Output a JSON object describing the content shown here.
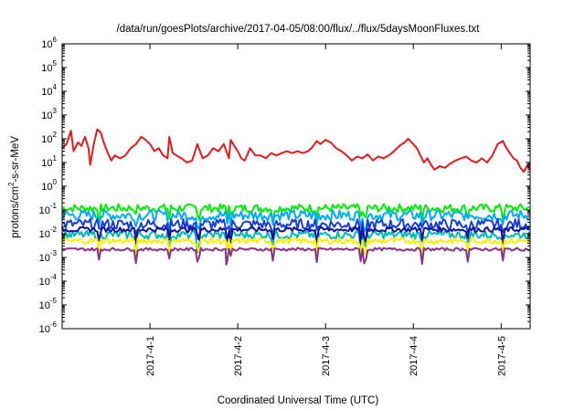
{
  "chart_data": {
    "type": "line",
    "title": "/data/run/goesPlots/archive/2017-04-05/08:00/flux/../flux/5daysMoonFluxes.txt",
    "xlabel": "Coordinated Universal Time (UTC)",
    "ylabel_parts": {
      "prefix": "protons/cm",
      "sup": "2",
      "suffix": "-s-sr-MeV"
    },
    "y_scale": "log",
    "ylim": [
      1e-06,
      1000000.0
    ],
    "y_ticks": [
      {
        "base": "10",
        "exp": "-6",
        "value": 1e-06
      },
      {
        "base": "10",
        "exp": "-5",
        "value": 1e-05
      },
      {
        "base": "10",
        "exp": "-4",
        "value": 0.0001
      },
      {
        "base": "10",
        "exp": "-3",
        "value": 0.001
      },
      {
        "base": "10",
        "exp": "-2",
        "value": 0.01
      },
      {
        "base": "10",
        "exp": "-1",
        "value": 0.1
      },
      {
        "base": "10",
        "exp": "0",
        "value": 1
      },
      {
        "base": "10",
        "exp": "1",
        "value": 10
      },
      {
        "base": "10",
        "exp": "2",
        "value": 100
      },
      {
        "base": "10",
        "exp": "3",
        "value": 1000
      },
      {
        "base": "10",
        "exp": "4",
        "value": 10000
      },
      {
        "base": "10",
        "exp": "5",
        "value": 100000
      },
      {
        "base": "10",
        "exp": "6",
        "value": 1000000
      }
    ],
    "xlim_days": [
      0,
      5.33
    ],
    "x_ticks": [
      {
        "label": "2017-4-1",
        "day": 1
      },
      {
        "label": "2017-4-2",
        "day": 2
      },
      {
        "label": "2017-4-3",
        "day": 3
      },
      {
        "label": "2017-4-4",
        "day": 4
      },
      {
        "label": "2017-4-5",
        "day": 5
      }
    ],
    "grid": false,
    "legend": "none",
    "series": [
      {
        "color": "#e41a1c",
        "points": [
          [
            0.0,
            40
          ],
          [
            0.05,
            60
          ],
          [
            0.1,
            220
          ],
          [
            0.13,
            30
          ],
          [
            0.18,
            70
          ],
          [
            0.22,
            50
          ],
          [
            0.26,
            120
          ],
          [
            0.3,
            40
          ],
          [
            0.32,
            8
          ],
          [
            0.36,
            60
          ],
          [
            0.4,
            250
          ],
          [
            0.44,
            180
          ],
          [
            0.48,
            60
          ],
          [
            0.52,
            25
          ],
          [
            0.56,
            12
          ],
          [
            0.6,
            20
          ],
          [
            0.66,
            15
          ],
          [
            0.72,
            20
          ],
          [
            0.78,
            40
          ],
          [
            0.84,
            60
          ],
          [
            0.9,
            120
          ],
          [
            0.95,
            90
          ],
          [
            1.0,
            60
          ],
          [
            1.05,
            30
          ],
          [
            1.1,
            40
          ],
          [
            1.15,
            20
          ],
          [
            1.2,
            15
          ],
          [
            1.22,
            120
          ],
          [
            1.26,
            25
          ],
          [
            1.3,
            20
          ],
          [
            1.36,
            15
          ],
          [
            1.42,
            10
          ],
          [
            1.48,
            12
          ],
          [
            1.54,
            60
          ],
          [
            1.6,
            15
          ],
          [
            1.66,
            20
          ],
          [
            1.72,
            40
          ],
          [
            1.78,
            30
          ],
          [
            1.84,
            60
          ],
          [
            1.9,
            15
          ],
          [
            1.92,
            90
          ],
          [
            1.96,
            50
          ],
          [
            2.0,
            30
          ],
          [
            2.04,
            15
          ],
          [
            2.08,
            12
          ],
          [
            2.14,
            40
          ],
          [
            2.2,
            20
          ],
          [
            2.26,
            20
          ],
          [
            2.32,
            15
          ],
          [
            2.38,
            25
          ],
          [
            2.44,
            20
          ],
          [
            2.5,
            25
          ],
          [
            2.56,
            30
          ],
          [
            2.62,
            25
          ],
          [
            2.68,
            30
          ],
          [
            2.74,
            25
          ],
          [
            2.8,
            30
          ],
          [
            2.84,
            40
          ],
          [
            2.9,
            80
          ],
          [
            2.94,
            60
          ],
          [
            3.0,
            90
          ],
          [
            3.06,
            70
          ],
          [
            3.12,
            40
          ],
          [
            3.18,
            30
          ],
          [
            3.24,
            20
          ],
          [
            3.3,
            12
          ],
          [
            3.36,
            18
          ],
          [
            3.42,
            15
          ],
          [
            3.48,
            22
          ],
          [
            3.54,
            12
          ],
          [
            3.6,
            18
          ],
          [
            3.66,
            15
          ],
          [
            3.72,
            20
          ],
          [
            3.78,
            30
          ],
          [
            3.84,
            50
          ],
          [
            3.9,
            70
          ],
          [
            3.94,
            100
          ],
          [
            4.0,
            60
          ],
          [
            4.04,
            40
          ],
          [
            4.08,
            20
          ],
          [
            4.12,
            10
          ],
          [
            4.16,
            15
          ],
          [
            4.2,
            8
          ],
          [
            4.24,
            5
          ],
          [
            4.3,
            7
          ],
          [
            4.36,
            6
          ],
          [
            4.42,
            9
          ],
          [
            4.48,
            12
          ],
          [
            4.54,
            15
          ],
          [
            4.6,
            18
          ],
          [
            4.66,
            12
          ],
          [
            4.72,
            10
          ],
          [
            4.78,
            15
          ],
          [
            4.84,
            10
          ],
          [
            4.9,
            20
          ],
          [
            4.96,
            60
          ],
          [
            5.02,
            80
          ],
          [
            5.06,
            40
          ],
          [
            5.1,
            25
          ],
          [
            5.14,
            15
          ],
          [
            5.18,
            12
          ],
          [
            5.22,
            6
          ],
          [
            5.26,
            4
          ],
          [
            5.3,
            8
          ],
          [
            5.33,
            5
          ]
        ]
      },
      {
        "color": "#00ee00",
        "level": 0.12,
        "spread": 0.35
      },
      {
        "color": "#00aaff",
        "level": 0.06,
        "spread": 0.45
      },
      {
        "color": "#1a3fd8",
        "level": 0.025,
        "spread": 0.45
      },
      {
        "color": "#00b8b8",
        "level": 0.009,
        "spread": 0.35
      },
      {
        "color": "#111199",
        "level": 0.015,
        "spread": 0.2
      },
      {
        "color": "#ffee00",
        "level": 0.005,
        "spread": 0.25
      },
      {
        "color": "#883388",
        "level": 0.0022,
        "spread": 0.12
      }
    ]
  }
}
